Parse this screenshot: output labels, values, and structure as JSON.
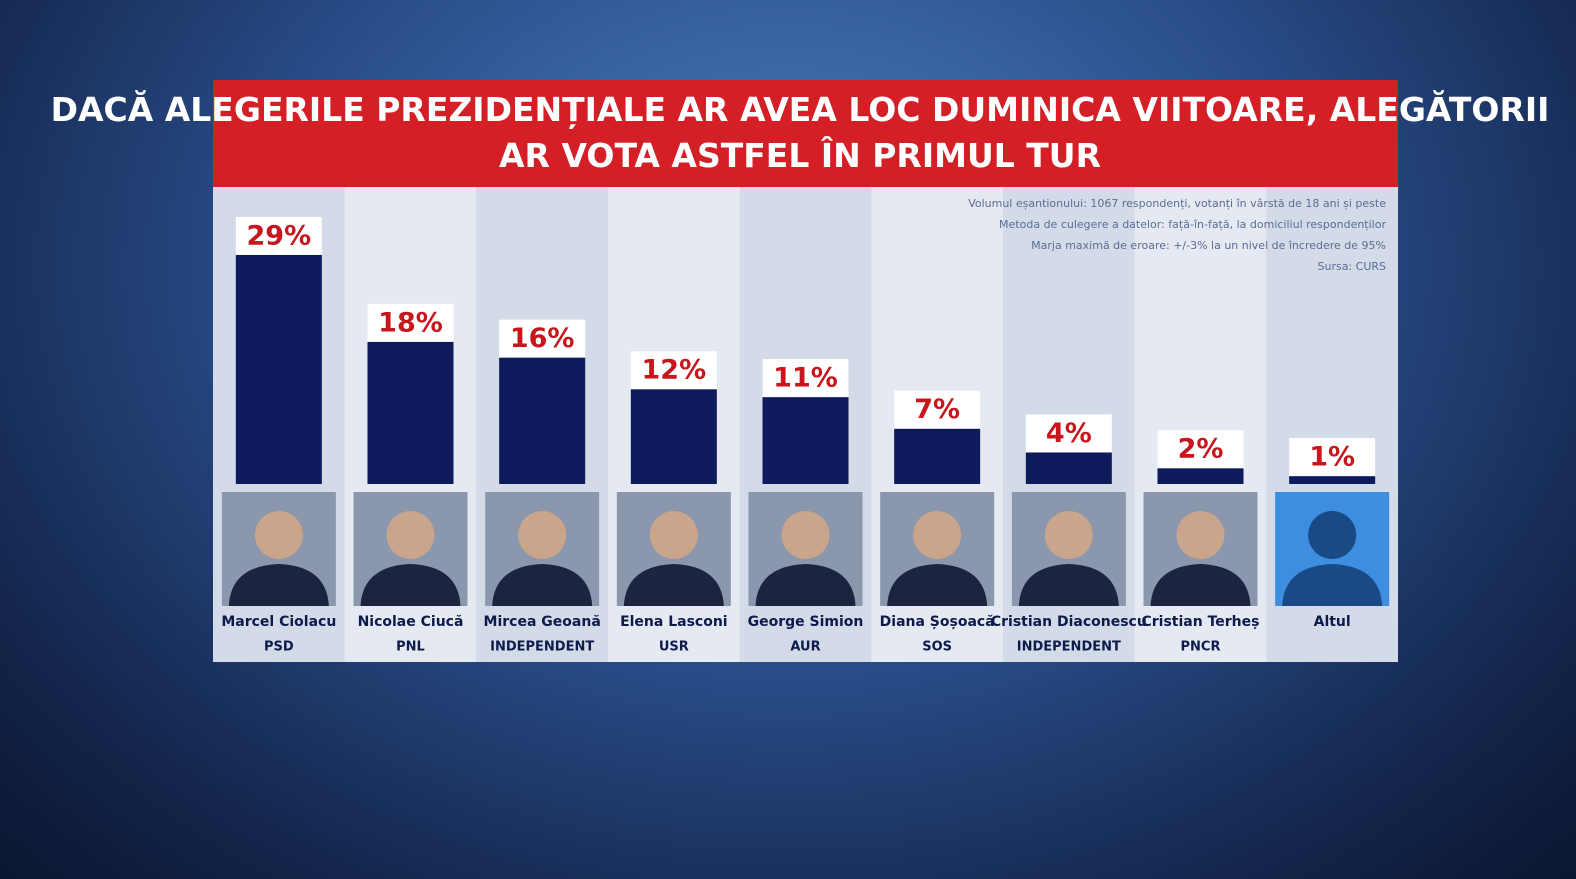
{
  "chart_data": {
    "type": "bar",
    "title": "DACĂ ALEGERILE PREZIDENȚIALE AR AVEA LOC DUMINICA VIITOARE, ALEGĂTORII AR VOTA ASTFEL ÎN PRIMUL TUR",
    "notes": [
      "Volumul eșantionului: 1067 respondenți, votanți în vârstă de 18 ani și peste",
      "Metoda de culegere a datelor: față-în-față, la domiciliul respondenților",
      "Marja maximă de eroare: +/-3% la un nivel de încredere de 95%",
      "Sursa: CURS"
    ],
    "categories": [
      "Marcel Ciolacu",
      "Nicolae Ciucă",
      "Mircea Geoană",
      "Elena Lasconi",
      "George Simion",
      "Diana Șoșoacă",
      "Cristian Diaconescu",
      "Cristian Terheș",
      "Altul"
    ],
    "parties": [
      "PSD",
      "PNL",
      "INDEPENDENT",
      "USR",
      "AUR",
      "SOS",
      "INDEPENDENT",
      "PNCR",
      null
    ],
    "values": [
      29,
      18,
      16,
      12,
      11,
      7,
      4,
      2,
      1
    ],
    "value_labels": [
      "29%",
      "18%",
      "16%",
      "12%",
      "11%",
      "7%",
      "4%",
      "2%",
      "1%"
    ],
    "color": "#0d1a5c"
  }
}
